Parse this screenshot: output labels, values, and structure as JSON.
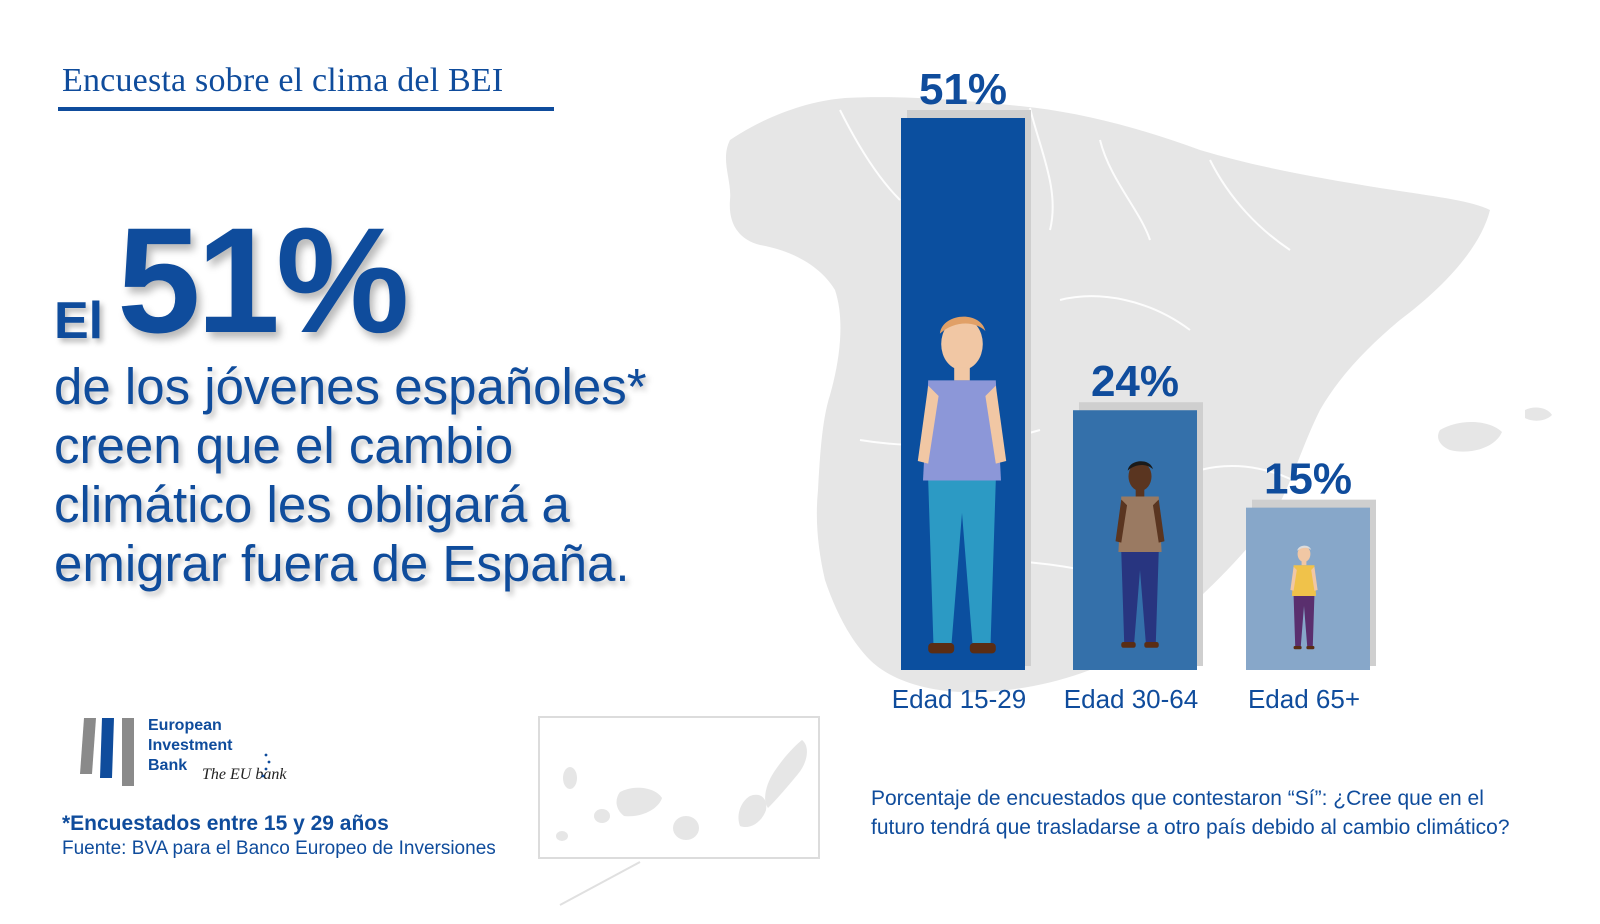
{
  "header": {
    "title": "Encuesta sobre el clima del BEI"
  },
  "headline": {
    "prefix": "El",
    "big_value": "51%",
    "lines": [
      "de los jóvenes españoles*",
      "creen que el cambio",
      "climático les obligará a",
      "emigrar fuera de España."
    ]
  },
  "logo": {
    "lines": [
      "European",
      "Investment",
      "Bank"
    ],
    "tagline": "The EU bank"
  },
  "footnote": "*Encuestados entre 15 y 29 años",
  "source": "Fuente: BVA para el Banco Europeo de Inversiones",
  "question": "Porcentaje de encuestados que contestaron “Sí”: ¿Cree que en el futuro tendrá que trasladarse a otro país debido al cambio climático?",
  "colors": {
    "brand_blue": "#0f4c9c",
    "bar_dark": "#0b4f9f",
    "bar_mid": "#3470aa",
    "bar_light": "#87a7c9",
    "map_gray": "#e6e6e6"
  },
  "chart_data": {
    "type": "bar",
    "categories": [
      "Edad 15-29",
      "Edad 30-64",
      "Edad 65+"
    ],
    "values": [
      51,
      24,
      15
    ],
    "value_labels": [
      "51%",
      "24%",
      "15%"
    ],
    "unit": "%",
    "ylim": [
      0,
      51
    ],
    "grid": false,
    "legend": "none",
    "bar_colors": [
      "#0b4f9f",
      "#3470aa",
      "#87a7c9"
    ]
  }
}
